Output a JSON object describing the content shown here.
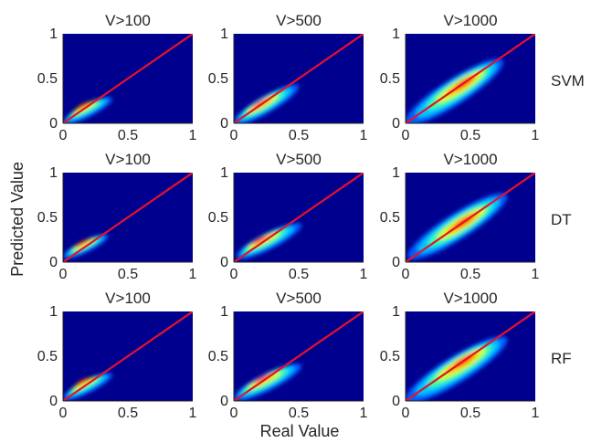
{
  "figure": {
    "xlabel": "Real Value",
    "ylabel": "Predicted Value"
  },
  "rows": [
    {
      "label": "SVM"
    },
    {
      "label": "DT"
    },
    {
      "label": "RF"
    }
  ],
  "columns": [
    {
      "title": "V>100"
    },
    {
      "title": "V>500"
    },
    {
      "title": "V>1000"
    }
  ],
  "colors": {
    "background": "#00008f",
    "diagonal": "#e8102c",
    "colormap": "jet"
  },
  "chart_data": [
    {
      "type": "heatmap",
      "title": "V>100",
      "row_label": "SVM",
      "xlim": [
        0,
        1
      ],
      "ylim": [
        0,
        1
      ],
      "xticks": [
        0,
        0.5,
        1
      ],
      "yticks": [
        0,
        0.5,
        1
      ],
      "xtick_labels": [
        "0",
        "0.5",
        "1"
      ],
      "ytick_labels": [
        "0",
        "0.5",
        "1"
      ],
      "reference_line": "y=x",
      "density_extent_x": [
        0,
        0.38
      ],
      "density_extent_y": [
        0,
        0.28
      ],
      "density_peak": [
        0.15,
        0.2
      ]
    },
    {
      "type": "heatmap",
      "title": "V>500",
      "row_label": "SVM",
      "xlim": [
        0,
        1
      ],
      "ylim": [
        0,
        1
      ],
      "xticks": [
        0,
        0.5,
        1
      ],
      "yticks": [
        0,
        0.5,
        1
      ],
      "xtick_labels": [
        "0",
        "0.5",
        "1"
      ],
      "ytick_labels": [
        "0",
        "0.5",
        "1"
      ],
      "reference_line": "y=x",
      "density_extent_x": [
        0,
        0.5
      ],
      "density_extent_y": [
        0,
        0.42
      ],
      "density_peak": [
        0.2,
        0.22
      ]
    },
    {
      "type": "heatmap",
      "title": "V>1000",
      "row_label": "SVM",
      "xlim": [
        0,
        1
      ],
      "ylim": [
        0,
        1
      ],
      "xticks": [
        0,
        0.5,
        1
      ],
      "yticks": [
        0,
        0.5,
        1
      ],
      "xtick_labels": [
        "0",
        "0.5",
        "1"
      ],
      "ytick_labels": [
        "0",
        "0.5",
        "1"
      ],
      "reference_line": "y=x",
      "density_extent_x": [
        0,
        0.75
      ],
      "density_extent_y": [
        0,
        0.7
      ],
      "density_peak": [
        0.45,
        0.45
      ]
    },
    {
      "type": "heatmap",
      "title": "V>100",
      "row_label": "DT",
      "xlim": [
        0,
        1
      ],
      "ylim": [
        0,
        1
      ],
      "xticks": [
        0,
        0.5,
        1
      ],
      "yticks": [
        0,
        0.5,
        1
      ],
      "xtick_labels": [
        "0",
        "0.5",
        "1"
      ],
      "ytick_labels": [
        "0",
        "0.5",
        "1"
      ],
      "reference_line": "y=x",
      "density_extent_x": [
        0,
        0.35
      ],
      "density_extent_y": [
        0.05,
        0.3
      ],
      "density_peak": [
        0.15,
        0.22
      ]
    },
    {
      "type": "heatmap",
      "title": "V>500",
      "row_label": "DT",
      "xlim": [
        0,
        1
      ],
      "ylim": [
        0,
        1
      ],
      "xticks": [
        0,
        0.5,
        1
      ],
      "yticks": [
        0,
        0.5,
        1
      ],
      "xtick_labels": [
        "0",
        "0.5",
        "1"
      ],
      "ytick_labels": [
        "0",
        "0.5",
        "1"
      ],
      "reference_line": "y=x",
      "density_extent_x": [
        0.02,
        0.52
      ],
      "density_extent_y": [
        0.05,
        0.42
      ],
      "density_peak": [
        0.2,
        0.25
      ]
    },
    {
      "type": "heatmap",
      "title": "V>1000",
      "row_label": "DT",
      "xlim": [
        0,
        1
      ],
      "ylim": [
        0,
        1
      ],
      "xticks": [
        0,
        0.5,
        1
      ],
      "yticks": [
        0,
        0.5,
        1
      ],
      "xtick_labels": [
        "0",
        "0.5",
        "1"
      ],
      "ytick_labels": [
        "0",
        "0.5",
        "1"
      ],
      "reference_line": "y=x",
      "density_extent_x": [
        0.02,
        0.78
      ],
      "density_extent_y": [
        0.05,
        0.75
      ],
      "density_peak": [
        0.45,
        0.45
      ]
    },
    {
      "type": "heatmap",
      "title": "V>100",
      "row_label": "RF",
      "xlim": [
        0,
        1
      ],
      "ylim": [
        0,
        1
      ],
      "xticks": [
        0,
        0.5,
        1
      ],
      "yticks": [
        0,
        0.5,
        1
      ],
      "xtick_labels": [
        "0",
        "0.5",
        "1"
      ],
      "ytick_labels": [
        "0",
        "0.5",
        "1"
      ],
      "reference_line": "y=x",
      "density_extent_x": [
        0,
        0.38
      ],
      "density_extent_y": [
        0.02,
        0.3
      ],
      "density_peak": [
        0.15,
        0.22
      ]
    },
    {
      "type": "heatmap",
      "title": "V>500",
      "row_label": "RF",
      "xlim": [
        0,
        1
      ],
      "ylim": [
        0,
        1
      ],
      "xticks": [
        0,
        0.5,
        1
      ],
      "yticks": [
        0,
        0.5,
        1
      ],
      "xtick_labels": [
        "0",
        "0.5",
        "1"
      ],
      "ytick_labels": [
        "0",
        "0.5",
        "1"
      ],
      "reference_line": "y=x",
      "density_extent_x": [
        0,
        0.52
      ],
      "density_extent_y": [
        0.02,
        0.4
      ],
      "density_peak": [
        0.22,
        0.25
      ]
    },
    {
      "type": "heatmap",
      "title": "V>1000",
      "row_label": "RF",
      "xlim": [
        0,
        1
      ],
      "ylim": [
        0,
        1
      ],
      "xticks": [
        0,
        0.5,
        1
      ],
      "yticks": [
        0,
        0.5,
        1
      ],
      "xtick_labels": [
        "0",
        "0.5",
        "1"
      ],
      "ytick_labels": [
        "0",
        "0.5",
        "1"
      ],
      "reference_line": "y=x",
      "density_extent_x": [
        0,
        0.78
      ],
      "density_extent_y": [
        0,
        0.7
      ],
      "density_peak": [
        0.45,
        0.45
      ]
    }
  ]
}
